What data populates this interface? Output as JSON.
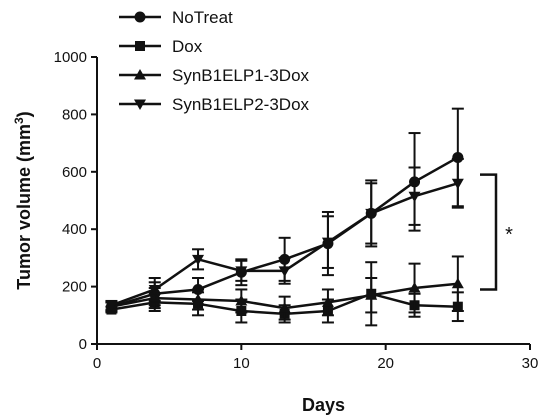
{
  "chart_data": {
    "type": "line",
    "title": "",
    "xlabel": "Days",
    "ylabel": "Tumor volume (mm",
    "ylabel_sup": "3",
    "ylabel_end": ")",
    "xlim": [
      0,
      30
    ],
    "ylim": [
      0,
      1000
    ],
    "xticks": [
      0,
      10,
      20,
      30
    ],
    "yticks": [
      0,
      200,
      400,
      600,
      800,
      1000
    ],
    "grid": false,
    "legend_position": "top-left",
    "x": [
      1,
      4,
      7,
      10,
      13,
      16,
      19,
      22,
      25
    ],
    "series": [
      {
        "name": "NoTreat",
        "marker": "circle",
        "values": [
          130,
          175,
          190,
          250,
          295,
          350,
          455,
          565,
          650
        ],
        "errors": [
          15,
          40,
          40,
          45,
          75,
          110,
          115,
          170,
          170
        ]
      },
      {
        "name": "Dox",
        "marker": "square",
        "values": [
          120,
          145,
          140,
          115,
          105,
          115,
          175,
          135,
          130
        ],
        "errors": [
          10,
          30,
          40,
          40,
          30,
          40,
          110,
          40,
          50
        ]
      },
      {
        "name": "SynB1ELP1-3Dox",
        "marker": "triangle-up",
        "values": [
          130,
          160,
          155,
          150,
          125,
          145,
          170,
          195,
          210
        ],
        "errors": [
          15,
          35,
          35,
          40,
          40,
          45,
          60,
          85,
          95
        ]
      },
      {
        "name": "SynB1ELP2-3Dox",
        "marker": "triangle-down",
        "values": [
          135,
          190,
          295,
          255,
          255,
          355,
          455,
          515,
          560
        ],
        "errors": [
          15,
          40,
          35,
          35,
          45,
          90,
          105,
          100,
          85
        ]
      }
    ],
    "annotation": {
      "text": "*",
      "y_top": 590,
      "y_bottom": 190
    }
  }
}
